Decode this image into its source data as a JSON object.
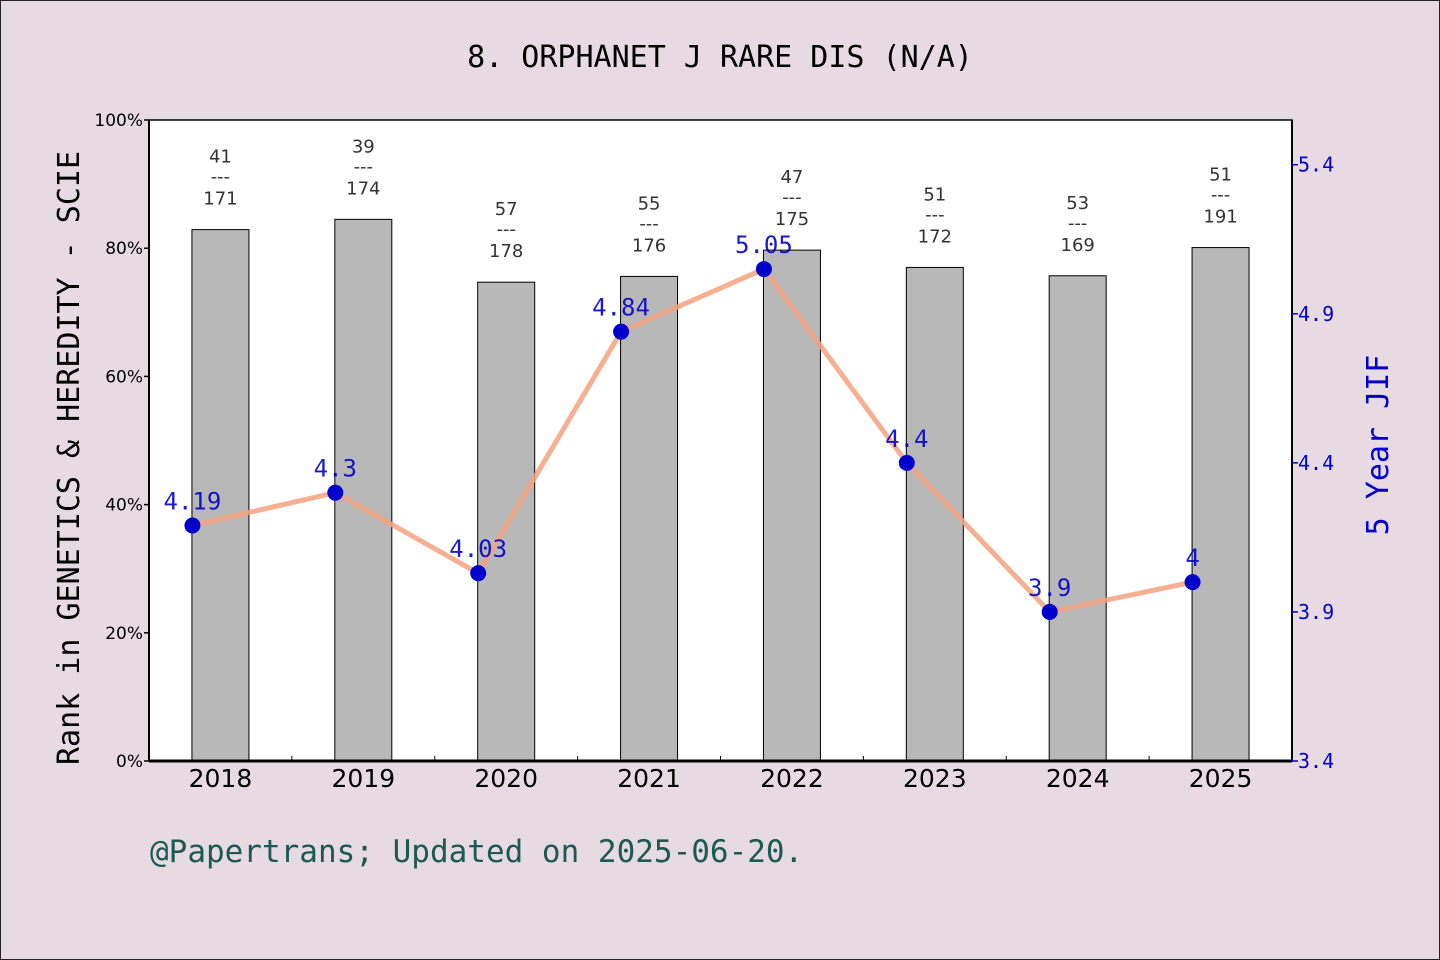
{
  "chart_data": {
    "type": "bar",
    "title": "8. ORPHANET J RARE DIS (N/A)",
    "categories": [
      "2018",
      "2019",
      "2020",
      "2021",
      "2022",
      "2023",
      "2024",
      "2025"
    ],
    "ylabel": "Rank in GENETICS & HEREDITY - SCIE",
    "y2label": "5 Year JIF",
    "ylim": [
      0,
      100
    ],
    "y_ticks": [
      "0%",
      "20%",
      "40%",
      "60%",
      "80%",
      "100%"
    ],
    "y2lim": [
      3.4,
      5.55
    ],
    "y2_ticks": [
      "3.4",
      "3.9",
      "4.4",
      "4.9",
      "5.4"
    ],
    "series": [
      {
        "type": "bar",
        "values": [
          82.9,
          84.5,
          74.7,
          75.6,
          79.7,
          77.0,
          75.7,
          80.1
        ],
        "rank": [
          "41",
          "39",
          "57",
          "55",
          "47",
          "51",
          "53",
          "51"
        ],
        "total": [
          "171",
          "174",
          "178",
          "176",
          "175",
          "172",
          "169",
          "191"
        ],
        "color": "#b8b8b8"
      },
      {
        "type": "line",
        "values": [
          4.19,
          4.3,
          4.03,
          4.84,
          5.05,
          4.4,
          3.9,
          4
        ],
        "labels": [
          "4.19",
          "4.3",
          "4.03",
          "4.84",
          "5.05",
          "4.4",
          "3.9",
          "4"
        ],
        "line_color": "#f4a17e",
        "marker_color": "#0000cc",
        "label_color": "#0000cc"
      }
    ],
    "rank_separator": "---",
    "grid": false
  },
  "footer": "@Papertrans; Updated on 2025-06-20."
}
